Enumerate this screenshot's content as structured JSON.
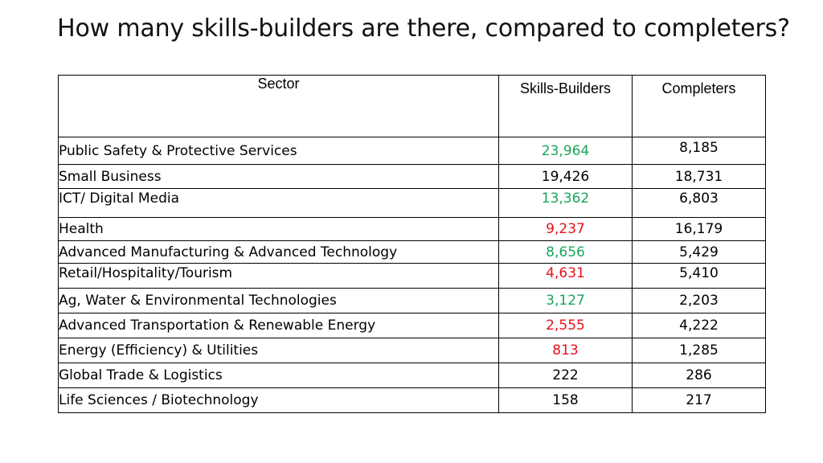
{
  "title": "How many skills-builders are there, compared to completers?",
  "headers": {
    "sector": "Sector",
    "skills": "Skills-Builders",
    "completers": "Completers"
  },
  "colors": {
    "green": "#1aa55a",
    "red": "#e8101a",
    "black": "#000000"
  },
  "rows": [
    {
      "sector": "Public Safety & Protective Services",
      "skills": "23,964",
      "skills_color": "green",
      "completers": "8,185"
    },
    {
      "sector": "Small Business",
      "skills": "19,426",
      "skills_color": "black",
      "completers": "18,731"
    },
    {
      "sector": "ICT/ Digital Media",
      "skills": "13,362",
      "skills_color": "green",
      "completers": "6,803"
    },
    {
      "sector": "Health",
      "skills": "9,237",
      "skills_color": "red",
      "completers": "16,179"
    },
    {
      "sector": "Advanced Manufacturing & Advanced Technology",
      "skills": "8,656",
      "skills_color": "green",
      "completers": "5,429"
    },
    {
      "sector": "Retail/Hospitality/Tourism",
      "skills": "4,631",
      "skills_color": "red",
      "completers": "5,410"
    },
    {
      "sector": "Ag, Water & Environmental Technologies",
      "skills": "3,127",
      "skills_color": "green",
      "completers": "2,203"
    },
    {
      "sector": "Advanced Transportation & Renewable Energy",
      "skills": "2,555",
      "skills_color": "red",
      "completers": "4,222"
    },
    {
      "sector": "Energy (Efficiency) & Utilities",
      "skills": "813",
      "skills_color": "red",
      "completers": "1,285"
    },
    {
      "sector": "Global Trade & Logistics",
      "skills": "222",
      "skills_color": "black",
      "completers": "286"
    },
    {
      "sector": "Life Sciences / Biotechnology",
      "skills": "158",
      "skills_color": "black",
      "completers": "217"
    }
  ]
}
